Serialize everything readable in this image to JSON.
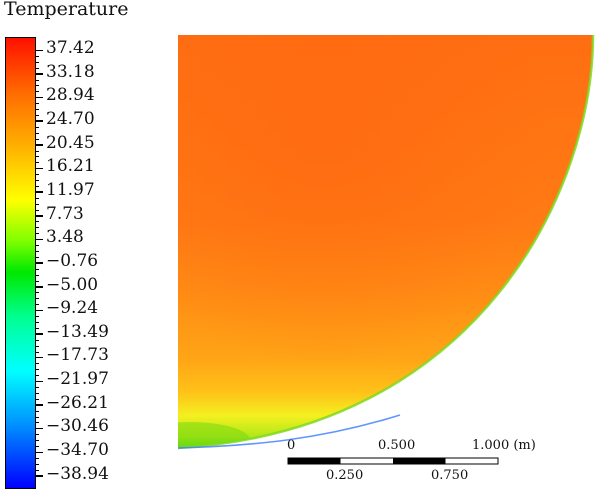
{
  "legend": {
    "title": "Temperature",
    "ticks": [
      "37.42",
      "33.18",
      "28.94",
      "24.70",
      "20.45",
      "16.21",
      "11.97",
      "7.73",
      "3.48",
      "−0.76",
      "−5.00",
      "−9.24",
      "−13.49",
      "−17.73",
      "−21.97",
      "−26.21",
      "−30.46",
      "−34.70",
      "−38.94"
    ]
  },
  "scale_bar": {
    "labels_top": [
      "0",
      "0.500",
      "1.000 (m)"
    ],
    "labels_bottom": [
      "0.250",
      "0.750"
    ]
  },
  "colors": {
    "field_dominant": "#ff7a10",
    "field_upper": "#ff7014",
    "field_lower": "#ffa018",
    "field_bottom": "#f8f020",
    "edge_green": "#50e010",
    "edge_blue": "#3070ff"
  }
}
